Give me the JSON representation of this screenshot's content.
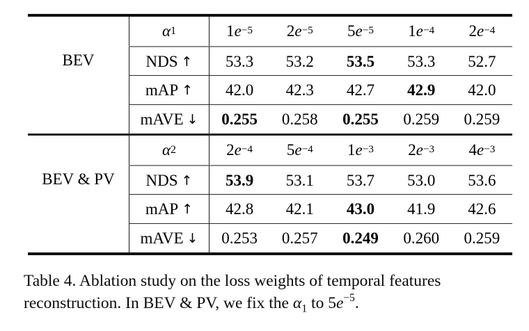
{
  "table": {
    "groups": [
      {
        "label": "BEV",
        "param": {
          "symbol": "α",
          "sub": "1"
        },
        "param_values": [
          {
            "c": "1",
            "e": "e",
            "x": "−5"
          },
          {
            "c": "2",
            "e": "e",
            "x": "−5"
          },
          {
            "c": "5",
            "e": "e",
            "x": "−5"
          },
          {
            "c": "1",
            "e": "e",
            "x": "−4"
          },
          {
            "c": "2",
            "e": "e",
            "x": "−4"
          }
        ],
        "rows": [
          {
            "metric": "NDS",
            "arrow": "↑",
            "values": [
              "53.3",
              "53.2",
              "53.5",
              "53.3",
              "52.7"
            ],
            "bold": [
              2
            ]
          },
          {
            "metric": "mAP",
            "arrow": "↑",
            "values": [
              "42.0",
              "42.3",
              "42.7",
              "42.9",
              "42.0"
            ],
            "bold": [
              3
            ]
          },
          {
            "metric": "mAVE",
            "arrow": "↓",
            "values": [
              "0.255",
              "0.258",
              "0.255",
              "0.259",
              "0.259"
            ],
            "bold": [
              0,
              2
            ]
          }
        ]
      },
      {
        "label": "BEV & PV",
        "param": {
          "symbol": "α",
          "sub": "2"
        },
        "param_values": [
          {
            "c": "2",
            "e": "e",
            "x": "−4"
          },
          {
            "c": "5",
            "e": "e",
            "x": "−4"
          },
          {
            "c": "1",
            "e": "e",
            "x": "−3"
          },
          {
            "c": "2",
            "e": "e",
            "x": "−3"
          },
          {
            "c": "4",
            "e": "e",
            "x": "−3"
          }
        ],
        "rows": [
          {
            "metric": "NDS",
            "arrow": "↑",
            "values": [
              "53.9",
              "53.1",
              "53.7",
              "53.0",
              "53.6"
            ],
            "bold": [
              0
            ]
          },
          {
            "metric": "mAP",
            "arrow": "↑",
            "values": [
              "42.8",
              "42.1",
              "43.0",
              "41.9",
              "42.6"
            ],
            "bold": [
              2
            ]
          },
          {
            "metric": "mAVE",
            "arrow": "↓",
            "values": [
              "0.253",
              "0.257",
              "0.249",
              "0.260",
              "0.259"
            ],
            "bold": [
              2
            ]
          }
        ]
      }
    ]
  },
  "caption": {
    "line1": "Table 4.  Ablation study on the loss weights of temporal features",
    "line2_pre": "reconstruction. In BEV & PV, we fix the ",
    "alpha": "α",
    "alpha_sub": "1",
    "line2_mid": " to ",
    "exp_coef": "5",
    "exp_e": "e",
    "exp_x": "−5",
    "line2_end": "."
  }
}
